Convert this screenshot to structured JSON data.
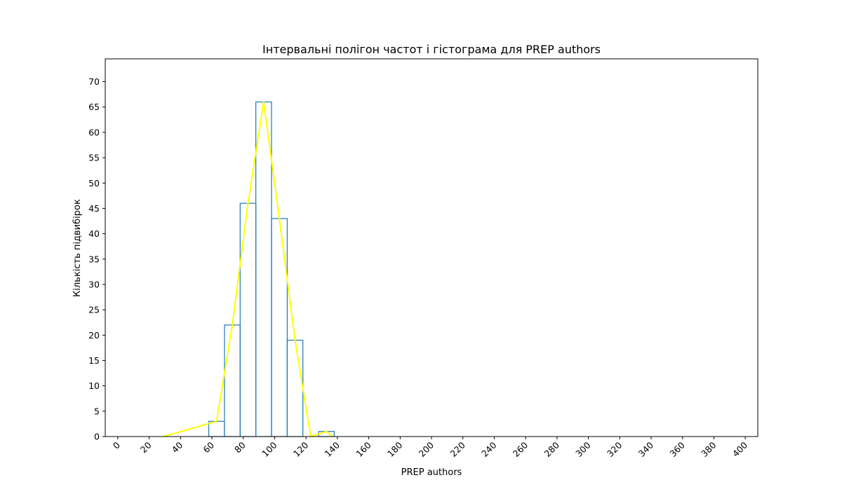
{
  "chart_data": {
    "type": "histogram",
    "title": "Інтервальні полігон частот і гістограма для PREP authors",
    "xlabel": "PREP authors",
    "ylabel": "Кількість підвибірок",
    "xlim": [
      -8,
      408
    ],
    "ylim": [
      0,
      74.5
    ],
    "x_ticks": [
      0,
      20,
      40,
      60,
      80,
      100,
      120,
      140,
      160,
      180,
      200,
      220,
      240,
      260,
      280,
      300,
      320,
      340,
      360,
      380,
      400
    ],
    "x_tick_labels": [
      "0",
      "20",
      "40",
      "60",
      "80",
      "100",
      "120",
      "140",
      "160",
      "180",
      "200",
      "220",
      "240",
      "260",
      "280",
      "300",
      "320",
      "340",
      "360",
      "380",
      "400"
    ],
    "y_ticks": [
      0,
      5,
      10,
      15,
      20,
      25,
      30,
      35,
      40,
      45,
      50,
      55,
      60,
      65,
      70
    ],
    "y_tick_labels": [
      "0",
      "5",
      "10",
      "15",
      "20",
      "25",
      "30",
      "35",
      "40",
      "45",
      "50",
      "55",
      "60",
      "65",
      "70"
    ],
    "grid": false,
    "histogram": {
      "color": "#1f77b4",
      "bin_edges": [
        58,
        68,
        78,
        88,
        98,
        108,
        118,
        128,
        138
      ],
      "counts": [
        3,
        22,
        46,
        66,
        43,
        19,
        0,
        1
      ]
    },
    "polygon": {
      "color": "#ffff00",
      "x": [
        29,
        63,
        73,
        83,
        93,
        103,
        113,
        123,
        133,
        137
      ],
      "y": [
        0,
        3,
        22,
        46,
        66,
        43,
        19,
        0,
        1,
        0
      ]
    }
  }
}
